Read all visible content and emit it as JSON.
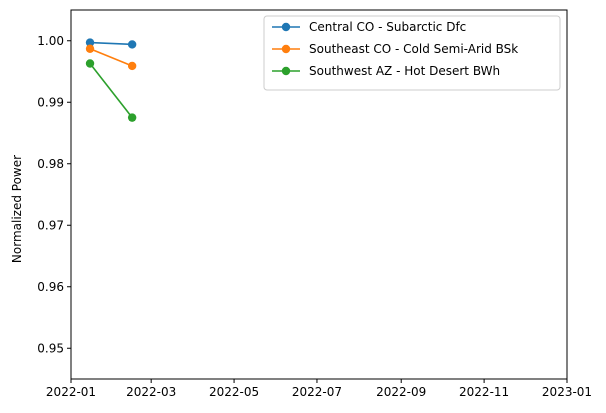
{
  "chart_data": {
    "type": "line",
    "title": "",
    "xlabel": "",
    "ylabel": "Normalized Power",
    "xlim": [
      "2022-01-01",
      "2023-01-01"
    ],
    "ylim": [
      0.945,
      1.005
    ],
    "x_ticks": [
      "2022-01",
      "2022-03",
      "2022-05",
      "2022-07",
      "2022-09",
      "2022-11",
      "2023-01"
    ],
    "y_ticks": [
      0.95,
      0.96,
      0.97,
      0.98,
      0.99,
      1.0
    ],
    "y_tick_labels": [
      "0.95",
      "0.96",
      "0.97",
      "0.98",
      "0.99",
      "1.00"
    ],
    "x": [
      "2022-01-15",
      "2022-02-15"
    ],
    "grid": false,
    "legend_position": "top-right",
    "series": [
      {
        "name": "Central CO - Subarctic Dfc",
        "color": "#1f77b4",
        "values": [
          0.9997,
          0.9994
        ]
      },
      {
        "name": "Southeast CO - Cold Semi-Arid BSk",
        "color": "#ff7f0e",
        "values": [
          0.9987,
          0.9959
        ]
      },
      {
        "name": "Southwest AZ - Hot Desert BWh",
        "color": "#2ca02c",
        "values": [
          0.9963,
          0.9875
        ]
      }
    ]
  }
}
